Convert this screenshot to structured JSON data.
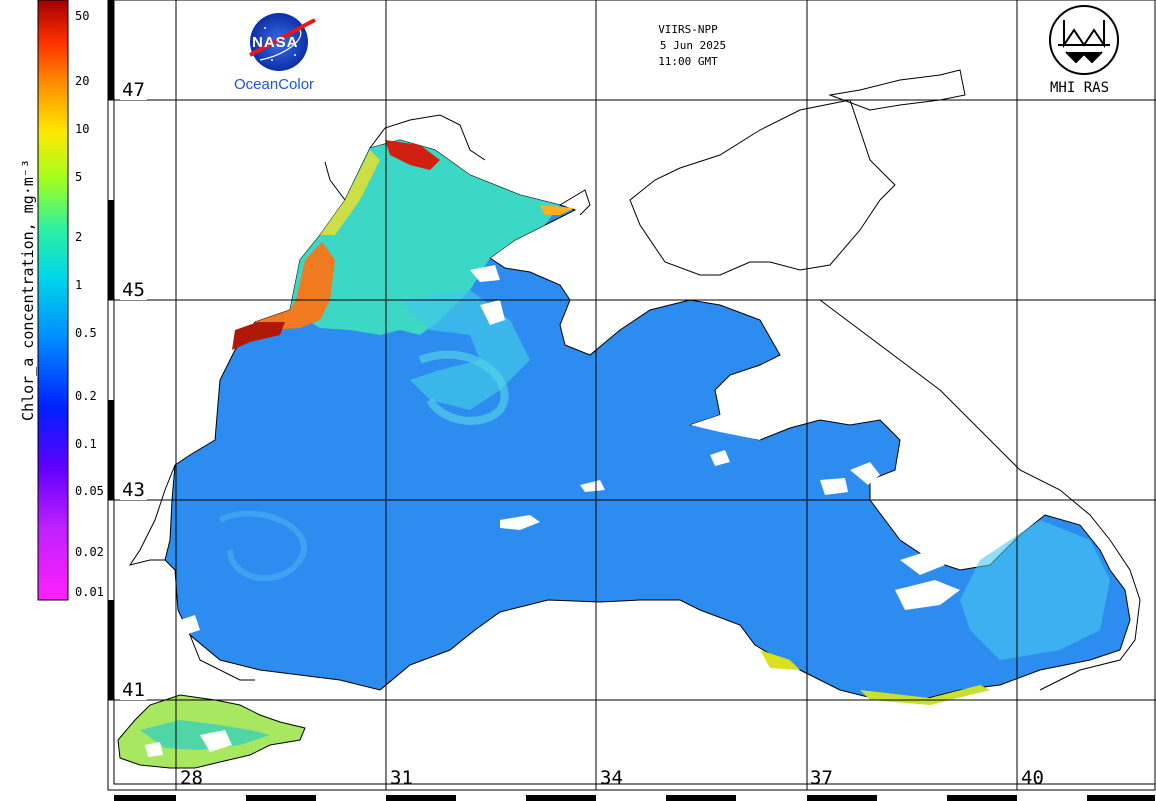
{
  "header": {
    "sensor": "VIIRS-NPP",
    "date": "5 Jun 2025",
    "time": "11:00 GMT"
  },
  "logos": {
    "nasa_text": "NASA",
    "ocean_color": "OceanColor",
    "mhi": "MHI RAS"
  },
  "colorbar": {
    "title": "Chlor_a concentration, mg·m⁻³",
    "ticks": [
      "50",
      "20",
      "10",
      "5",
      "2",
      "1",
      "0.5",
      "0.2",
      "0.1",
      "0.05",
      "0.02",
      "0.01"
    ],
    "colors": [
      "#b00000",
      "#e02000",
      "#ff7a00",
      "#ffd800",
      "#c8ff00",
      "#40ff80",
      "#00e0e0",
      "#00a0ff",
      "#0050ff",
      "#2000e0",
      "#8000ff",
      "#ff20ff"
    ]
  },
  "grid": {
    "latitudes": [
      "47",
      "45",
      "43",
      "41"
    ],
    "longitudes": [
      "28",
      "31",
      "34",
      "37",
      "40"
    ]
  },
  "map": {
    "land_color": "#ffffff",
    "sea_color": "#2c8cf0",
    "coastline_color": "#000000"
  }
}
